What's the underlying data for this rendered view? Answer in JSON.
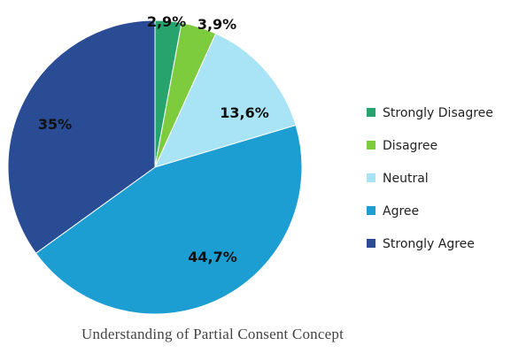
{
  "chart_data": {
    "type": "pie",
    "title": "",
    "caption": "Understanding of Partial Consent Concept",
    "legend_position": "right",
    "slices": [
      {
        "label": "Strongly Disagree",
        "value": 2.9,
        "display": "2,9%",
        "color": "#27a36e"
      },
      {
        "label": "Disagree",
        "value": 3.9,
        "display": "3,9%",
        "color": "#7ccc3e"
      },
      {
        "label": "Neutral",
        "value": 13.6,
        "display": "13,6%",
        "color": "#a8e4f5"
      },
      {
        "label": "Agree",
        "value": 44.7,
        "display": "44,7%",
        "color": "#1c9ed3"
      },
      {
        "label": "Strongly Agree",
        "value": 35,
        "display": "35%",
        "color": "#2a4c94"
      }
    ]
  }
}
